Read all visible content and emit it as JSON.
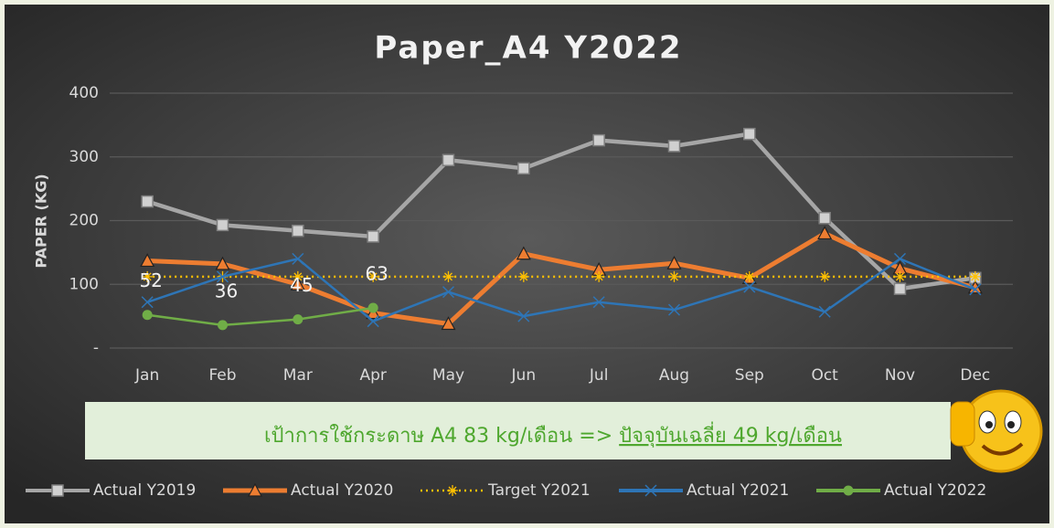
{
  "chart_data": {
    "type": "line",
    "title": "Paper_A4 Y2022",
    "y_label": "PAPER (KG)",
    "categories": [
      "Jan",
      "Feb",
      "Mar",
      "Apr",
      "May",
      "Jun",
      "Jul",
      "Aug",
      "Sep",
      "Oct",
      "Nov",
      "Dec"
    ],
    "ylim": [
      0,
      400
    ],
    "yticks": [
      {
        "value": 0,
        "label": "-"
      },
      100,
      200,
      300,
      400
    ],
    "grid": true,
    "legend": "bottom",
    "series": [
      {
        "name": "Actual Y2019",
        "color": "#a6a6a6",
        "marker": "square",
        "values": [
          230,
          193,
          184,
          175,
          295,
          282,
          326,
          317,
          336,
          204,
          93,
          110
        ]
      },
      {
        "name": "Actual Y2020",
        "color": "#ed7d31",
        "marker": "triangle",
        "values": [
          137,
          132,
          100,
          55,
          38,
          148,
          123,
          133,
          110,
          180,
          125,
          95
        ]
      },
      {
        "name": "Target Y2021",
        "color": "#ffc000",
        "marker": "asterisk",
        "dash": "dotted",
        "values": [
          112,
          112,
          112,
          112,
          112,
          112,
          112,
          112,
          112,
          112,
          112,
          112
        ]
      },
      {
        "name": "Actual Y2021",
        "color": "#2e75b6",
        "marker": "x",
        "values": [
          72,
          112,
          140,
          42,
          88,
          50,
          72,
          60,
          96,
          57,
          140,
          92
        ]
      },
      {
        "name": "Actual Y2022",
        "color": "#70ad47",
        "marker": "circle",
        "data_labels": true,
        "values": [
          52,
          36,
          45,
          63,
          null,
          null,
          null,
          null,
          null,
          null,
          null,
          null
        ]
      }
    ],
    "annotation": {
      "text": "เป้าการใช้กระดาษ A4 83 kg/เดือน => ",
      "highlight": "ปัจจุบันเฉลี่ย 49 kg/เดือน"
    }
  }
}
